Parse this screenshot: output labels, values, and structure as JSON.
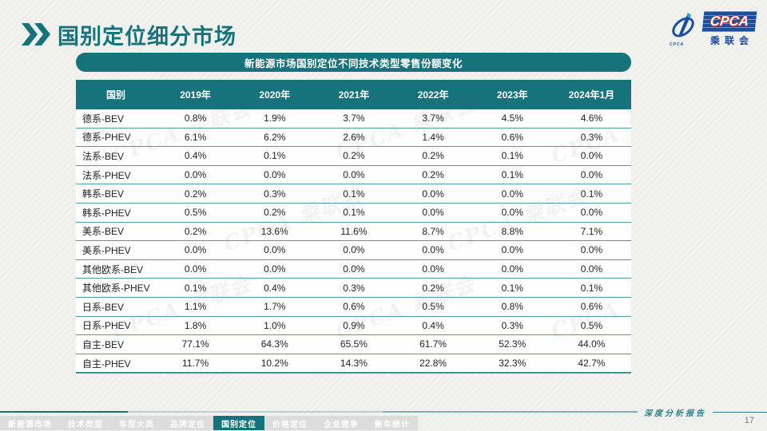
{
  "slide": {
    "title": "国别定位细分市场",
    "page_number": "17",
    "footer_label": "深度分析报告"
  },
  "logo": {
    "acronym": "CPCA",
    "cn_name": "乘联会",
    "emblem_caption": "CPCA"
  },
  "banner": {
    "title": "新能源市场国别定位不同技术类型零售份额变化"
  },
  "chart_data": {
    "type": "table",
    "title": "新能源市场国别定位不同技术类型零售份额变化",
    "columns": [
      "国别",
      "2019年",
      "2020年",
      "2021年",
      "2022年",
      "2023年",
      "2024年1月"
    ],
    "rows": [
      {
        "label": "德系-BEV",
        "values": [
          "0.8%",
          "1.9%",
          "3.7%",
          "3.7%",
          "4.5%",
          "4.6%"
        ]
      },
      {
        "label": "德系-PHEV",
        "values": [
          "6.1%",
          "6.2%",
          "2.6%",
          "1.4%",
          "0.6%",
          "0.3%"
        ]
      },
      {
        "label": "法系-BEV",
        "values": [
          "0.4%",
          "0.1%",
          "0.2%",
          "0.2%",
          "0.1%",
          "0.0%"
        ]
      },
      {
        "label": "法系-PHEV",
        "values": [
          "0.0%",
          "0.0%",
          "0.0%",
          "0.2%",
          "0.1%",
          "0.0%"
        ]
      },
      {
        "label": "韩系-BEV",
        "values": [
          "0.2%",
          "0.3%",
          "0.1%",
          "0.0%",
          "0.0%",
          "0.1%"
        ]
      },
      {
        "label": "韩系-PHEV",
        "values": [
          "0.5%",
          "0.2%",
          "0.1%",
          "0.0%",
          "0.0%",
          "0.0%"
        ]
      },
      {
        "label": "美系-BEV",
        "values": [
          "0.2%",
          "13.6%",
          "11.6%",
          "8.7%",
          "8.8%",
          "7.1%"
        ]
      },
      {
        "label": "美系-PHEV",
        "values": [
          "0.0%",
          "0.0%",
          "0.0%",
          "0.0%",
          "0.0%",
          "0.0%"
        ]
      },
      {
        "label": "其他欧系-BEV",
        "values": [
          "0.0%",
          "0.0%",
          "0.0%",
          "0.0%",
          "0.0%",
          "0.0%"
        ]
      },
      {
        "label": "其他欧系-PHEV",
        "values": [
          "0.1%",
          "0.4%",
          "0.3%",
          "0.2%",
          "0.1%",
          "0.1%"
        ]
      },
      {
        "label": "日系-BEV",
        "values": [
          "1.1%",
          "1.7%",
          "0.6%",
          "0.5%",
          "0.8%",
          "0.6%"
        ]
      },
      {
        "label": "日系-PHEV",
        "values": [
          "1.8%",
          "1.0%",
          "0.9%",
          "0.4%",
          "0.3%",
          "0.5%"
        ]
      },
      {
        "label": "自主-BEV",
        "values": [
          "77.1%",
          "64.3%",
          "65.5%",
          "61.7%",
          "52.3%",
          "44.0%"
        ]
      },
      {
        "label": "自主-PHEV",
        "values": [
          "11.7%",
          "10.2%",
          "14.3%",
          "22.8%",
          "32.3%",
          "42.7%"
        ]
      }
    ]
  },
  "bottom_nav": {
    "tabs": [
      "新能源市场",
      "技术类型",
      "车型大类",
      "品牌定位",
      "国别定位",
      "价格定位",
      "企业竞争",
      "新车统计"
    ],
    "active_tab": "国别定位"
  },
  "watermark": {
    "text": "CPCA 乘联会"
  },
  "colors": {
    "accent_teal": "#16737b",
    "row_divider": "#4d9ea4",
    "logo_blue": "#1a4fa0",
    "logo_red": "#d42b26"
  }
}
